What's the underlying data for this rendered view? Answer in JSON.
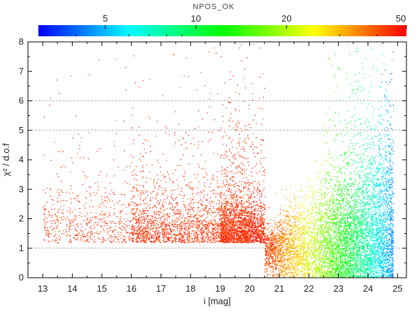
{
  "chart_data": {
    "type": "scatter",
    "xlabel": "i [mag]",
    "ylabel": "χ² / d.o.f",
    "xlim": [
      12.5,
      25.3
    ],
    "ylim": [
      0,
      8
    ],
    "x_ticks": [
      "13",
      "14",
      "15",
      "16",
      "17",
      "18",
      "19",
      "20",
      "21",
      "22",
      "23",
      "24",
      "25"
    ],
    "y_ticks": [
      "0",
      "1",
      "2",
      "3",
      "4",
      "5",
      "6",
      "7",
      "8"
    ],
    "reference_lines_y": [
      1,
      5,
      6
    ],
    "colorbar": {
      "title": "NPOS_OK",
      "scale": "log",
      "range": [
        3,
        50
      ],
      "tick_labels": [
        "5",
        "10",
        "20",
        "50"
      ],
      "tick_values": [
        5,
        10,
        20,
        50
      ],
      "colors": [
        "#0000ff",
        "#00ffff",
        "#00ff00",
        "#ffff00",
        "#ff0000"
      ]
    },
    "point_density_groups": [
      {
        "i_mag_range": [
          13,
          21
        ],
        "chi2_dof_center": 1.3,
        "npos_ok": 50,
        "color": "#ff0000",
        "note_level": "dense"
      },
      {
        "i_mag_range": [
          21,
          23
        ],
        "chi2_dof_center": 1.0,
        "npos_ok": 20,
        "color": "#ffff00",
        "note_level": "dense"
      },
      {
        "i_mag_range": [
          22,
          24
        ],
        "chi2_dof_center": 0.8,
        "npos_ok": 10,
        "color": "#00ff00",
        "note_level": "dense"
      },
      {
        "i_mag_range": [
          23,
          25
        ],
        "chi2_dof_center": 0.5,
        "npos_ok": 5,
        "color": "#0000ff",
        "note_level": "dense"
      }
    ],
    "grid": false,
    "legend": "colorbar-top"
  }
}
